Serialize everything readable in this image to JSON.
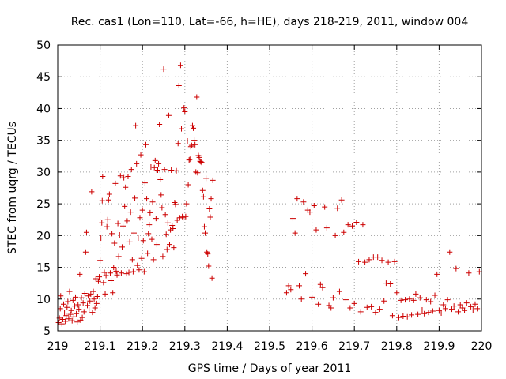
{
  "chart_data": {
    "type": "scatter",
    "title": "Rec. cas1 (Lon=110, Lat=-66, h=HE), days 218-219, 2011, window 004",
    "xlabel": "GPS time / Days of year 2011",
    "ylabel": "STEC from uqrg / TECUs",
    "xlim": [
      219,
      220
    ],
    "ylim": [
      5,
      50
    ],
    "x_ticks": [
      "219",
      "219.1",
      "219.2",
      "219.3",
      "219.4",
      "219.5",
      "219.6",
      "219.7",
      "219.8",
      "219.9",
      "220"
    ],
    "y_ticks": [
      "5",
      "10",
      "15",
      "20",
      "25",
      "30",
      "35",
      "40",
      "45",
      "50"
    ],
    "grid": "on",
    "marker": "plus",
    "marker_color": "#cc0000",
    "points": [
      [
        219.002,
        6.3
      ],
      [
        219.004,
        7.0
      ],
      [
        219.006,
        8.5
      ],
      [
        219.007,
        10.5
      ],
      [
        219.01,
        6.1
      ],
      [
        219.012,
        6.8
      ],
      [
        219.014,
        9.2
      ],
      [
        219.016,
        7.8
      ],
      [
        219.018,
        6.5
      ],
      [
        219.02,
        7.4
      ],
      [
        219.022,
        8.7
      ],
      [
        219.024,
        9.6
      ],
      [
        219.026,
        6.9
      ],
      [
        219.028,
        11.2
      ],
      [
        219.03,
        7.6
      ],
      [
        219.032,
        8.2
      ],
      [
        219.034,
        6.6
      ],
      [
        219.036,
        9.8
      ],
      [
        219.038,
        7.2
      ],
      [
        219.04,
        8.9
      ],
      [
        219.042,
        10.3
      ],
      [
        219.044,
        7.7
      ],
      [
        219.046,
        6.4
      ],
      [
        219.048,
        9.1
      ],
      [
        219.05,
        8.4
      ],
      [
        219.052,
        13.9
      ],
      [
        219.054,
        6.7
      ],
      [
        219.056,
        10.2
      ],
      [
        219.058,
        7.1
      ],
      [
        219.06,
        9.4
      ],
      [
        219.062,
        8.0
      ],
      [
        219.064,
        10.9
      ],
      [
        219.066,
        17.4
      ],
      [
        219.068,
        20.5
      ],
      [
        219.07,
        9.0
      ],
      [
        219.072,
        10.5
      ],
      [
        219.074,
        8.3
      ],
      [
        219.076,
        9.7
      ],
      [
        219.078,
        10.8
      ],
      [
        219.08,
        26.9
      ],
      [
        219.082,
        7.9
      ],
      [
        219.084,
        11.2
      ],
      [
        219.086,
        10.0
      ],
      [
        219.088,
        8.6
      ],
      [
        219.09,
        13.2
      ],
      [
        219.092,
        9.3
      ],
      [
        219.094,
        10.4
      ],
      [
        219.096,
        12.8
      ],
      [
        219.098,
        13.5
      ],
      [
        219.1,
        16.1
      ],
      [
        219.102,
        19.6
      ],
      [
        219.104,
        22.0
      ],
      [
        219.105,
        25.5
      ],
      [
        219.106,
        29.3
      ],
      [
        219.108,
        12.6
      ],
      [
        219.11,
        14.2
      ],
      [
        219.112,
        10.8
      ],
      [
        219.114,
        13.7
      ],
      [
        219.116,
        21.4
      ],
      [
        219.118,
        22.5
      ],
      [
        219.12,
        25.6
      ],
      [
        219.122,
        26.5
      ],
      [
        219.124,
        14.1
      ],
      [
        219.126,
        12.9
      ],
      [
        219.128,
        20.3
      ],
      [
        219.13,
        11.0
      ],
      [
        219.132,
        15.0
      ],
      [
        219.134,
        18.8
      ],
      [
        219.136,
        28.2
      ],
      [
        219.138,
        14.4
      ],
      [
        219.14,
        13.8
      ],
      [
        219.142,
        21.9
      ],
      [
        219.144,
        16.7
      ],
      [
        219.146,
        20.1
      ],
      [
        219.148,
        29.4
      ],
      [
        219.15,
        14.1
      ],
      [
        219.152,
        18.2
      ],
      [
        219.154,
        21.5
      ],
      [
        219.156,
        29.1
      ],
      [
        219.158,
        24.6
      ],
      [
        219.16,
        27.6
      ],
      [
        219.162,
        14.0
      ],
      [
        219.164,
        22.3
      ],
      [
        219.166,
        29.3
      ],
      [
        219.168,
        14.2
      ],
      [
        219.17,
        19.0
      ],
      [
        219.172,
        23.7
      ],
      [
        219.174,
        30.4
      ],
      [
        219.176,
        16.2
      ],
      [
        219.178,
        14.3
      ],
      [
        219.18,
        20.4
      ],
      [
        219.182,
        25.9
      ],
      [
        219.184,
        37.3
      ],
      [
        219.186,
        31.3
      ],
      [
        219.188,
        15.3
      ],
      [
        219.19,
        19.6
      ],
      [
        219.192,
        14.6
      ],
      [
        219.194,
        22.8
      ],
      [
        219.196,
        32.7
      ],
      [
        219.198,
        16.4
      ],
      [
        219.2,
        24.0
      ],
      [
        219.202,
        19.2
      ],
      [
        219.204,
        14.3
      ],
      [
        219.206,
        28.3
      ],
      [
        219.208,
        34.3
      ],
      [
        219.21,
        25.8
      ],
      [
        219.212,
        17.2
      ],
      [
        219.214,
        20.3
      ],
      [
        219.216,
        21.7
      ],
      [
        219.218,
        23.6
      ],
      [
        219.22,
        30.8
      ],
      [
        219.222,
        19.4
      ],
      [
        219.224,
        25.3
      ],
      [
        219.226,
        16.2
      ],
      [
        219.228,
        30.7
      ],
      [
        219.23,
        31.8
      ],
      [
        219.232,
        22.7
      ],
      [
        219.234,
        18.6
      ],
      [
        219.236,
        30.3
      ],
      [
        219.238,
        31.3
      ],
      [
        219.24,
        37.5
      ],
      [
        219.242,
        28.8
      ],
      [
        219.244,
        26.4
      ],
      [
        219.246,
        24.4
      ],
      [
        219.248,
        16.7
      ],
      [
        219.25,
        46.2
      ],
      [
        219.252,
        30.4
      ],
      [
        219.254,
        23.3
      ],
      [
        219.256,
        20.2
      ],
      [
        219.258,
        17.8
      ],
      [
        219.26,
        22.0
      ],
      [
        219.262,
        38.9
      ],
      [
        219.264,
        18.6
      ],
      [
        219.266,
        20.9
      ],
      [
        219.268,
        30.3
      ],
      [
        219.27,
        21.6
      ],
      [
        219.272,
        21.1
      ],
      [
        219.274,
        18.1
      ],
      [
        219.276,
        25.2
      ],
      [
        219.278,
        24.9
      ],
      [
        219.28,
        30.2
      ],
      [
        219.282,
        22.4
      ],
      [
        219.284,
        34.5
      ],
      [
        219.286,
        43.6
      ],
      [
        219.288,
        22.8
      ],
      [
        219.29,
        46.8
      ],
      [
        219.292,
        36.8
      ],
      [
        219.294,
        23.0
      ],
      [
        219.296,
        22.8
      ],
      [
        219.298,
        40.1
      ],
      [
        219.3,
        39.5
      ],
      [
        219.302,
        23.0
      ],
      [
        219.304,
        25.0
      ],
      [
        219.306,
        34.9
      ],
      [
        219.308,
        28.0
      ],
      [
        219.31,
        31.9
      ],
      [
        219.312,
        32.0
      ],
      [
        219.314,
        34.0
      ],
      [
        219.316,
        34.2
      ],
      [
        219.318,
        37.3
      ],
      [
        219.32,
        36.9
      ],
      [
        219.322,
        35.0
      ],
      [
        219.324,
        34.3
      ],
      [
        219.326,
        30.0
      ],
      [
        219.328,
        41.8
      ],
      [
        219.33,
        29.9
      ],
      [
        219.332,
        32.6
      ],
      [
        219.334,
        32.3
      ],
      [
        219.336,
        31.7
      ],
      [
        219.338,
        31.6
      ],
      [
        219.34,
        31.5
      ],
      [
        219.342,
        27.1
      ],
      [
        219.344,
        26.1
      ],
      [
        219.346,
        21.4
      ],
      [
        219.348,
        20.4
      ],
      [
        219.35,
        29.0
      ],
      [
        219.352,
        17.4
      ],
      [
        219.354,
        17.1
      ],
      [
        219.356,
        15.2
      ],
      [
        219.358,
        24.2
      ],
      [
        219.36,
        22.9
      ],
      [
        219.362,
        25.8
      ],
      [
        219.364,
        13.3
      ],
      [
        219.366,
        28.7
      ]
    ],
    "points_right": [
      [
        219.54,
        11.0
      ],
      [
        219.545,
        12.1
      ],
      [
        219.55,
        11.5
      ],
      [
        219.555,
        22.7
      ],
      [
        219.56,
        20.4
      ],
      [
        219.565,
        25.8
      ],
      [
        219.57,
        12.1
      ],
      [
        219.575,
        10.0
      ],
      [
        219.58,
        25.3
      ],
      [
        219.585,
        14.0
      ],
      [
        219.59,
        24.0
      ],
      [
        219.595,
        23.7
      ],
      [
        219.6,
        10.3
      ],
      [
        219.605,
        24.7
      ],
      [
        219.61,
        20.9
      ],
      [
        219.615,
        9.2
      ],
      [
        219.62,
        12.3
      ],
      [
        219.625,
        11.8
      ],
      [
        219.63,
        24.5
      ],
      [
        219.635,
        21.2
      ],
      [
        219.64,
        9.0
      ],
      [
        219.645,
        8.6
      ],
      [
        219.65,
        10.2
      ],
      [
        219.655,
        20.0
      ],
      [
        219.66,
        24.3
      ],
      [
        219.665,
        11.2
      ],
      [
        219.67,
        25.6
      ],
      [
        219.675,
        20.5
      ],
      [
        219.68,
        9.9
      ],
      [
        219.685,
        21.7
      ],
      [
        219.69,
        8.6
      ],
      [
        219.695,
        21.5
      ],
      [
        219.7,
        9.3
      ],
      [
        219.705,
        22.1
      ],
      [
        219.71,
        15.9
      ],
      [
        219.715,
        8.0
      ],
      [
        219.72,
        21.7
      ],
      [
        219.725,
        15.8
      ],
      [
        219.73,
        8.7
      ],
      [
        219.735,
        16.2
      ],
      [
        219.74,
        8.8
      ],
      [
        219.745,
        16.6
      ],
      [
        219.75,
        7.9
      ],
      [
        219.755,
        16.6
      ],
      [
        219.76,
        8.4
      ],
      [
        219.765,
        16.1
      ],
      [
        219.77,
        9.7
      ],
      [
        219.775,
        12.5
      ],
      [
        219.78,
        15.8
      ],
      [
        219.785,
        12.4
      ],
      [
        219.79,
        7.4
      ],
      [
        219.795,
        15.9
      ],
      [
        219.8,
        11.0
      ],
      [
        219.805,
        7.1
      ],
      [
        219.81,
        9.8
      ],
      [
        219.815,
        7.3
      ],
      [
        219.82,
        9.9
      ],
      [
        219.825,
        7.2
      ],
      [
        219.83,
        10.0
      ],
      [
        219.835,
        7.5
      ],
      [
        219.84,
        9.8
      ],
      [
        219.845,
        10.8
      ],
      [
        219.85,
        7.6
      ],
      [
        219.855,
        10.2
      ],
      [
        219.86,
        8.3
      ],
      [
        219.865,
        7.7
      ],
      [
        219.87,
        9.9
      ],
      [
        219.875,
        7.9
      ],
      [
        219.88,
        9.6
      ],
      [
        219.885,
        8.1
      ],
      [
        219.89,
        10.6
      ],
      [
        219.895,
        13.9
      ],
      [
        219.9,
        8.2
      ],
      [
        219.905,
        7.8
      ],
      [
        219.91,
        9.1
      ],
      [
        219.915,
        8.5
      ],
      [
        219.92,
        9.9
      ],
      [
        219.925,
        17.4
      ],
      [
        219.93,
        8.4
      ],
      [
        219.935,
        8.9
      ],
      [
        219.94,
        14.8
      ],
      [
        219.945,
        8.0
      ],
      [
        219.95,
        9.1
      ],
      [
        219.955,
        8.6
      ],
      [
        219.96,
        8.2
      ],
      [
        219.965,
        9.4
      ],
      [
        219.97,
        14.1
      ],
      [
        219.975,
        8.8
      ],
      [
        219.98,
        8.3
      ],
      [
        219.985,
        9.2
      ],
      [
        219.99,
        8.5
      ],
      [
        219.995,
        14.3
      ]
    ]
  }
}
